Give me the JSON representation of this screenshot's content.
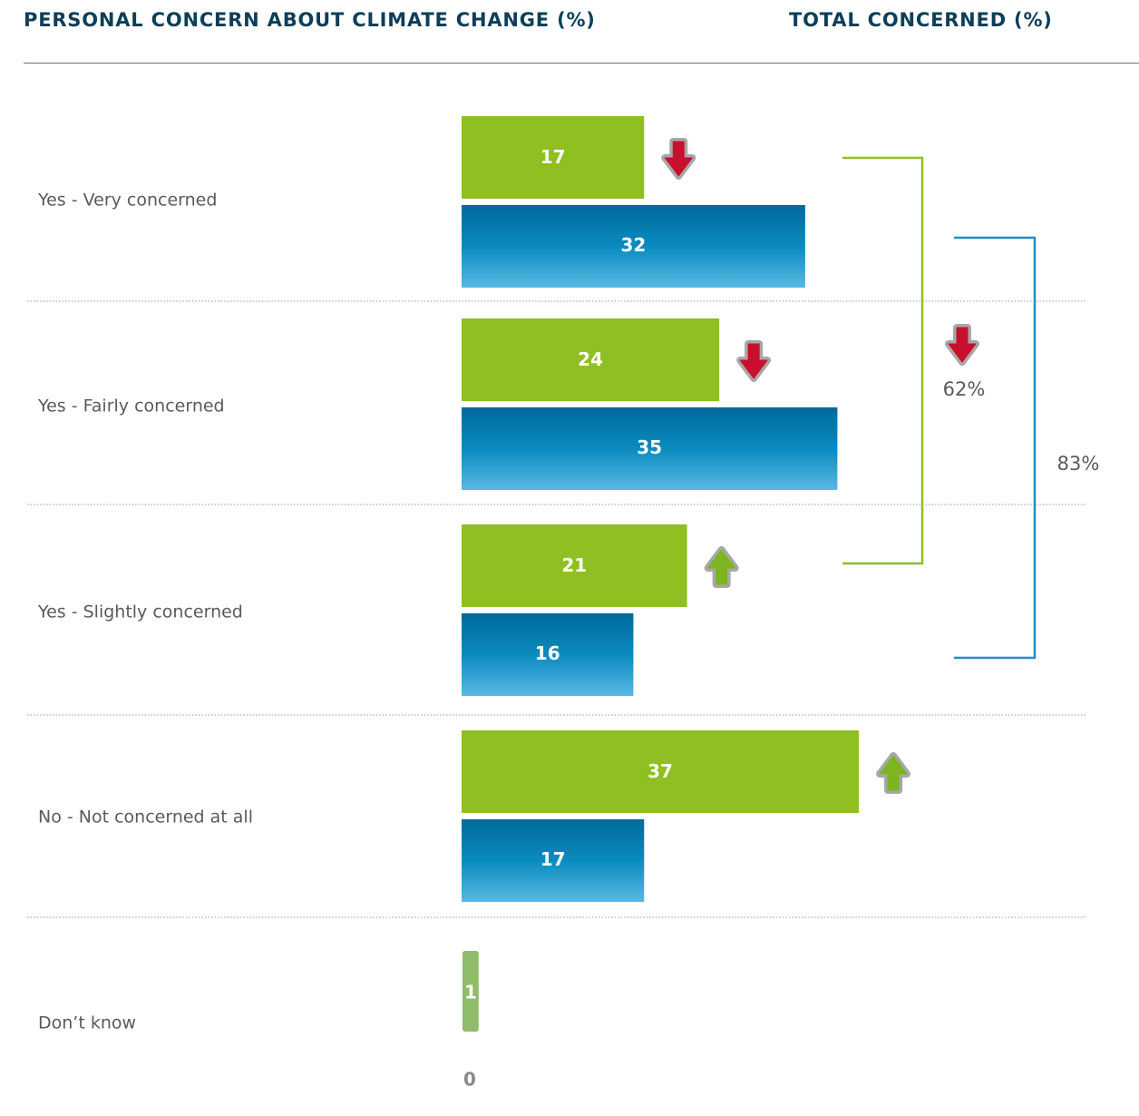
{
  "headers": {
    "left": "PERSONAL CONCERN ABOUT CLIMATE CHANGE (%)",
    "right": "TOTAL CONCERNED (%)"
  },
  "colors": {
    "green": "#8fbf21",
    "blue_top": "#00699a",
    "blue_bottom": "#5ab8e2",
    "dont_know_green": "#8fbc6a",
    "arrow_down": "#c8102e",
    "arrow_up": "#7cb51f",
    "bracket_green": "#8fbf21",
    "bracket_blue": "#1f8fca"
  },
  "chart_data": {
    "type": "bar",
    "orientation": "horizontal",
    "categories": [
      "Yes - Very concerned",
      "Yes - Fairly concerned",
      "Yes - Slightly concerned",
      "No - Not concerned at all",
      "Don’t know"
    ],
    "series": [
      {
        "color": "#8fbf21",
        "values": [
          17,
          24,
          21,
          37,
          1
        ],
        "change_arrows": [
          "down",
          "down",
          "up",
          "up",
          null
        ]
      },
      {
        "color": "#0b84b8",
        "values": [
          32,
          35,
          16,
          17,
          0
        ]
      }
    ],
    "totals": [
      {
        "label": "62%",
        "series": 0,
        "arrow": "down",
        "spans": [
          "Yes - Very concerned",
          "Yes - Slightly concerned"
        ]
      },
      {
        "label": "83%",
        "series": 1,
        "arrow": null,
        "spans": [
          "Yes - Very concerned",
          "Yes - Slightly concerned"
        ]
      }
    ],
    "xlim": [
      0,
      40
    ],
    "grid": false
  }
}
